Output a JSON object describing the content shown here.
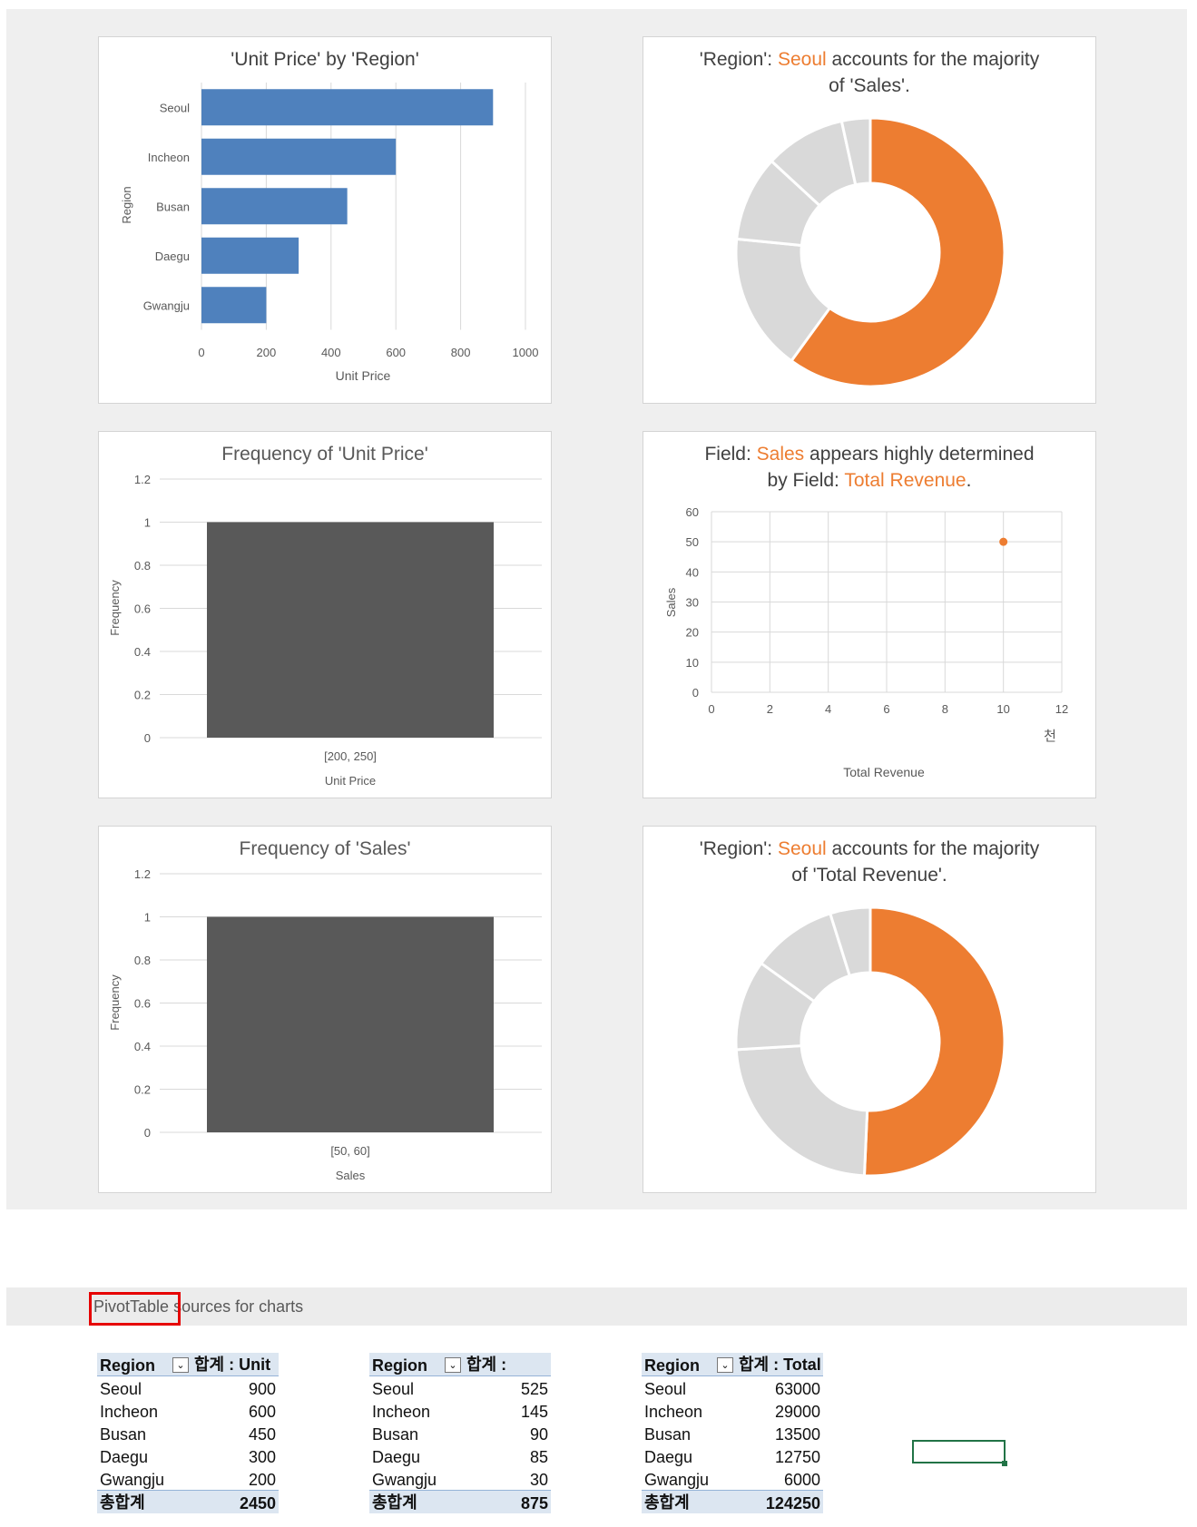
{
  "colors": {
    "bar_blue": "#4f81bd",
    "accent_orange": "#ed7d31",
    "gray": "#d9d9d9",
    "hist_dark": "#595959",
    "selection_green": "#217346",
    "highlight_red": "#e60000"
  },
  "charts": {
    "c1": {
      "title": "'Unit Price' by 'Region'"
    },
    "c2": {
      "title_a": "'Region': ",
      "title_hl": "Seoul",
      "title_b": " accounts for the majority",
      "title_c": "of 'Sales'."
    },
    "c3": {
      "title": "Frequency of 'Unit Price'"
    },
    "c4": {
      "title_a": "Field: ",
      "title_hl1": "Sales",
      "title_b": " appears highly determined",
      "title_c": "by Field: ",
      "title_hl2": "Total Revenue",
      "title_d": "."
    },
    "c5": {
      "title": "Frequency of 'Sales'"
    },
    "c6": {
      "title_a": "'Region': ",
      "title_hl": "Seoul",
      "title_b": " accounts for the majority",
      "title_c": "of 'Total Revenue'."
    }
  },
  "chart_data": [
    {
      "type": "bar",
      "orientation": "horizontal",
      "title": "'Unit Price' by 'Region'",
      "xlabel": "Unit Price",
      "ylabel": "Region",
      "categories": [
        "Seoul",
        "Incheon",
        "Busan",
        "Daegu",
        "Gwangju"
      ],
      "values": [
        900,
        600,
        450,
        300,
        200
      ],
      "xlim": [
        0,
        1000
      ],
      "xticks": [
        "0",
        "200",
        "400",
        "600",
        "800",
        "1000"
      ],
      "grid": true
    },
    {
      "type": "pie",
      "style": "donut",
      "title": "'Region': Seoul accounts for the majority of 'Sales'.",
      "labels": [
        "Seoul",
        "Incheon",
        "Busan",
        "Daegu",
        "Gwangju"
      ],
      "values": [
        525,
        145,
        90,
        85,
        30
      ],
      "highlight": "Seoul"
    },
    {
      "type": "bar",
      "title": "Frequency of 'Unit Price'",
      "xlabel": "Unit Price",
      "ylabel": "Frequency",
      "categories": [
        "[200, 250]"
      ],
      "values": [
        1
      ],
      "ylim": [
        0,
        1.2
      ],
      "yticks": [
        "0",
        "0.2",
        "0.4",
        "0.6",
        "0.8",
        "1",
        "1.2"
      ]
    },
    {
      "type": "scatter",
      "title": "Field: Sales appears highly determined by Field: Total Revenue.",
      "xlabel": "Total Revenue",
      "ylabel": "Sales",
      "x_unit_label": "천",
      "points": [
        {
          "x": 10,
          "y": 50
        }
      ],
      "xlim": [
        0,
        12
      ],
      "ylim": [
        0,
        60
      ],
      "xticks": [
        "0",
        "2",
        "4",
        "6",
        "8",
        "10",
        "12"
      ],
      "yticks": [
        "0",
        "10",
        "20",
        "30",
        "40",
        "50",
        "60"
      ],
      "grid": true
    },
    {
      "type": "bar",
      "title": "Frequency of 'Sales'",
      "xlabel": "Sales",
      "ylabel": "Frequency",
      "categories": [
        "[50, 60]"
      ],
      "values": [
        1
      ],
      "ylim": [
        0,
        1.2
      ],
      "yticks": [
        "0",
        "0.2",
        "0.4",
        "0.6",
        "0.8",
        "1",
        "1.2"
      ]
    },
    {
      "type": "pie",
      "style": "donut",
      "title": "'Region': Seoul accounts for the majority of 'Total Revenue'.",
      "labels": [
        "Seoul",
        "Incheon",
        "Busan",
        "Daegu",
        "Gwangju"
      ],
      "values": [
        63000,
        29000,
        13500,
        12750,
        6000
      ],
      "highlight": "Seoul"
    }
  ],
  "section": {
    "highlighted_word": "PivotTable",
    "rest": " sources for charts"
  },
  "pivots": [
    {
      "col1": "Region",
      "dropdown": "⌄",
      "col2": "합계 : Unit",
      "rows": [
        {
          "k": "Seoul",
          "v": "900"
        },
        {
          "k": "Incheon",
          "v": "600"
        },
        {
          "k": "Busan",
          "v": "450"
        },
        {
          "k": "Daegu",
          "v": "300"
        },
        {
          "k": "Gwangju",
          "v": "200"
        }
      ],
      "total_label": "총합계",
      "total": "2450"
    },
    {
      "col1": "Region",
      "dropdown": "⌄",
      "col2": "합계 :",
      "rows": [
        {
          "k": "Seoul",
          "v": "525"
        },
        {
          "k": "Incheon",
          "v": "145"
        },
        {
          "k": "Busan",
          "v": "90"
        },
        {
          "k": "Daegu",
          "v": "85"
        },
        {
          "k": "Gwangju",
          "v": "30"
        }
      ],
      "total_label": "총합계",
      "total": "875"
    },
    {
      "col1": "Region",
      "dropdown": "⌄",
      "col2": "합계 : Total",
      "rows": [
        {
          "k": "Seoul",
          "v": "63000"
        },
        {
          "k": "Incheon",
          "v": "29000"
        },
        {
          "k": "Busan",
          "v": "13500"
        },
        {
          "k": "Daegu",
          "v": "12750"
        },
        {
          "k": "Gwangju",
          "v": "6000"
        }
      ],
      "total_label": "총합계",
      "total": "124250"
    }
  ]
}
